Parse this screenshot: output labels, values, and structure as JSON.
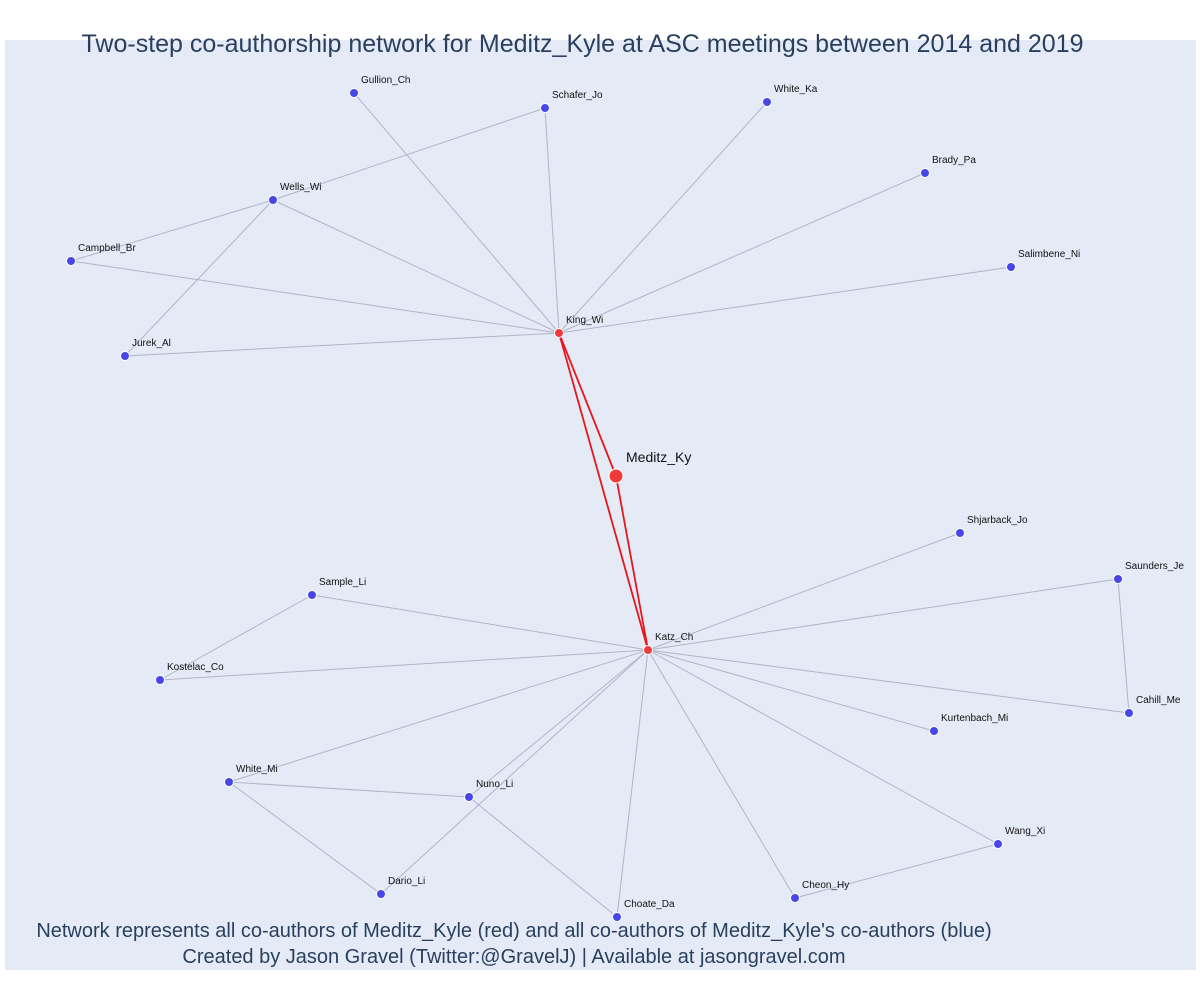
{
  "title": "Two-step co-authorship network for Meditz_Kyle at ASC meetings between 2014 and 2019",
  "caption": {
    "line1": "Network represents all co-authors of Meditz_Kyle (red) and all co-authors of Meditz_Kyle's co-authors (blue)",
    "line2": "Created by Jason Gravel (Twitter:@GravelJ) | Available at jasongravel.com"
  },
  "colors": {
    "background": "#e5ebf6",
    "first_degree": "#ef3b3b",
    "second_degree": "#4747e8",
    "edge_first_degree": "#e8161c",
    "edge_second_degree": "#b0b4c8"
  },
  "network": {
    "ego": "Meditz_Ky",
    "nodes": [
      {
        "id": "Meditz_Ky",
        "group": "ego"
      },
      {
        "id": "King_Wi",
        "group": "first_degree"
      },
      {
        "id": "Katz_Ch",
        "group": "first_degree"
      },
      {
        "id": "Gullion_Ch",
        "group": "second_degree"
      },
      {
        "id": "Schafer_Jo",
        "group": "second_degree"
      },
      {
        "id": "White_Ka",
        "group": "second_degree"
      },
      {
        "id": "Brady_Pa",
        "group": "second_degree"
      },
      {
        "id": "Wells_Wi",
        "group": "second_degree"
      },
      {
        "id": "Campbell_Br",
        "group": "second_degree"
      },
      {
        "id": "Salimbene_Ni",
        "group": "second_degree"
      },
      {
        "id": "Jurek_Al",
        "group": "second_degree"
      },
      {
        "id": "Shjarback_Jo",
        "group": "second_degree"
      },
      {
        "id": "Saunders_Je",
        "group": "second_degree"
      },
      {
        "id": "Sample_Li",
        "group": "second_degree"
      },
      {
        "id": "Kostelac_Co",
        "group": "second_degree"
      },
      {
        "id": "Cahill_Me",
        "group": "second_degree"
      },
      {
        "id": "Kurtenbach_Mi",
        "group": "second_degree"
      },
      {
        "id": "White_Mi",
        "group": "second_degree"
      },
      {
        "id": "Nuno_Li",
        "group": "second_degree"
      },
      {
        "id": "Wang_Xi",
        "group": "second_degree"
      },
      {
        "id": "Dario_Li",
        "group": "second_degree"
      },
      {
        "id": "Cheon_Hy",
        "group": "second_degree"
      },
      {
        "id": "Choate_Da",
        "group": "second_degree"
      }
    ],
    "edges": [
      [
        "Meditz_Ky",
        "King_Wi"
      ],
      [
        "Meditz_Ky",
        "Katz_Ch"
      ],
      [
        "King_Wi",
        "Katz_Ch"
      ],
      [
        "King_Wi",
        "Gullion_Ch"
      ],
      [
        "King_Wi",
        "Schafer_Jo"
      ],
      [
        "King_Wi",
        "White_Ka"
      ],
      [
        "King_Wi",
        "Brady_Pa"
      ],
      [
        "King_Wi",
        "Wells_Wi"
      ],
      [
        "King_Wi",
        "Campbell_Br"
      ],
      [
        "King_Wi",
        "Salimbene_Ni"
      ],
      [
        "King_Wi",
        "Jurek_Al"
      ],
      [
        "Wells_Wi",
        "Schafer_Jo"
      ],
      [
        "Wells_Wi",
        "Campbell_Br"
      ],
      [
        "Wells_Wi",
        "Jurek_Al"
      ],
      [
        "Katz_Ch",
        "Shjarback_Jo"
      ],
      [
        "Katz_Ch",
        "Saunders_Je"
      ],
      [
        "Katz_Ch",
        "Sample_Li"
      ],
      [
        "Katz_Ch",
        "Kostelac_Co"
      ],
      [
        "Katz_Ch",
        "Cahill_Me"
      ],
      [
        "Katz_Ch",
        "Kurtenbach_Mi"
      ],
      [
        "Katz_Ch",
        "White_Mi"
      ],
      [
        "Katz_Ch",
        "Nuno_Li"
      ],
      [
        "Katz_Ch",
        "Wang_Xi"
      ],
      [
        "Katz_Ch",
        "Dario_Li"
      ],
      [
        "Katz_Ch",
        "Cheon_Hy"
      ],
      [
        "Katz_Ch",
        "Choate_Da"
      ],
      [
        "Saunders_Je",
        "Cahill_Me"
      ],
      [
        "Sample_Li",
        "Kostelac_Co"
      ],
      [
        "White_Mi",
        "Nuno_Li"
      ],
      [
        "White_Mi",
        "Dario_Li"
      ],
      [
        "Nuno_Li",
        "Choate_Da"
      ],
      [
        "Wang_Xi",
        "Cheon_Hy"
      ]
    ]
  }
}
